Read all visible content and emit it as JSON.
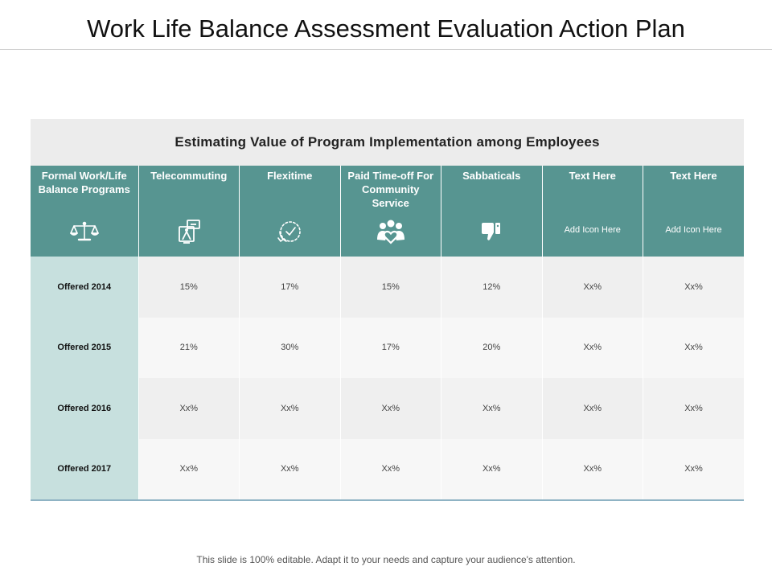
{
  "slide": {
    "title": "Work Life Balance Assessment Evaluation Action Plan",
    "footer": "This slide is 100% editable. Adapt it to your needs and capture your audience's attention."
  },
  "table": {
    "heading": "Estimating Value of Program Implementation among Employees",
    "columns": [
      {
        "label": "Formal Work/Life Balance Programs",
        "icon": "scales-icon"
      },
      {
        "label": "Telecommuting",
        "icon": "telecommuting-icon"
      },
      {
        "label": "Flexitime",
        "icon": "clock-check-icon"
      },
      {
        "label": "Paid Time-off For Community Service",
        "icon": "community-heart-icon"
      },
      {
        "label": "Sabbaticals",
        "icon": "thumbs-down-icon"
      },
      {
        "label": "Text Here",
        "placeholder": "Add Icon Here"
      },
      {
        "label": "Text Here",
        "placeholder": "Add Icon Here"
      }
    ],
    "rows": [
      {
        "label": "Offered 2014",
        "values": [
          "15%",
          "17%",
          "15%",
          "12%",
          "Xx%",
          "Xx%"
        ]
      },
      {
        "label": "Offered 2015",
        "values": [
          "21%",
          "30%",
          "17%",
          "20%",
          "Xx%",
          "Xx%"
        ]
      },
      {
        "label": "Offered 2016",
        "values": [
          "Xx%",
          "Xx%",
          "Xx%",
          "Xx%",
          "Xx%",
          "Xx%"
        ]
      },
      {
        "label": "Offered 2017",
        "values": [
          "Xx%",
          "Xx%",
          "Xx%",
          "Xx%",
          "Xx%",
          "Xx%"
        ]
      }
    ]
  },
  "colors": {
    "header_teal": "#579591",
    "row_label_bg": "#c7e0de",
    "heading_bg": "#ececec"
  }
}
